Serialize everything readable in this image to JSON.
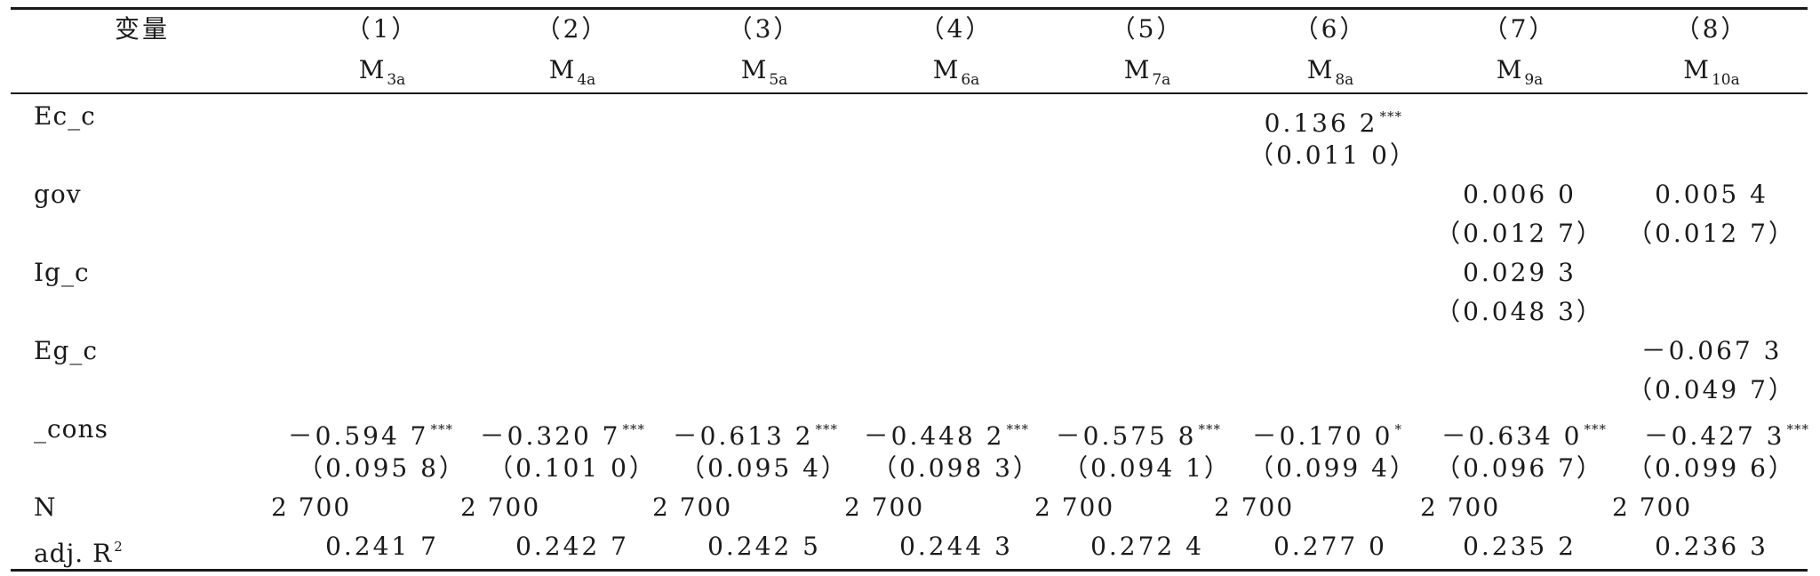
{
  "header": {
    "variable_label": "变量",
    "columns": [
      {
        "num": "（1）",
        "model": "M",
        "model_sub": "3a"
      },
      {
        "num": "（2）",
        "model": "M",
        "model_sub": "4a"
      },
      {
        "num": "（3）",
        "model": "M",
        "model_sub": "5a"
      },
      {
        "num": "（4）",
        "model": "M",
        "model_sub": "6a"
      },
      {
        "num": "（5）",
        "model": "M",
        "model_sub": "7a"
      },
      {
        "num": "（6）",
        "model": "M",
        "model_sub": "8a"
      },
      {
        "num": "（7）",
        "model": "M",
        "model_sub": "9a"
      },
      {
        "num": "（8）",
        "model": "M",
        "model_sub": "10a"
      }
    ]
  },
  "rows": {
    "ec_c": {
      "label": "Ec_c",
      "c6": {
        "coef": "0.136 2",
        "stars": "***",
        "se": "（0.011 0）"
      }
    },
    "gov": {
      "label": "gov",
      "c7": {
        "coef": "0.006 0",
        "se": "（0.012 7）"
      },
      "c8": {
        "coef": "0.005 4",
        "se": "（0.012 7）"
      }
    },
    "ig_c": {
      "label": "Ig_c",
      "c7": {
        "coef": "0.029 3",
        "se": "（0.048 3）"
      }
    },
    "eg_c": {
      "label": "Eg_c",
      "c8": {
        "coef": "－0.067 3",
        "se": "（0.049 7）"
      }
    },
    "cons": {
      "label": "_cons",
      "cols": [
        {
          "coef": "－0.594 7",
          "stars": "***",
          "se": "（0.095 8）"
        },
        {
          "coef": "－0.320 7",
          "stars": "***",
          "se": "（0.101 0）"
        },
        {
          "coef": "－0.613 2",
          "stars": "***",
          "se": "（0.095 4）"
        },
        {
          "coef": "－0.448 2",
          "stars": "***",
          "se": "（0.098 3）"
        },
        {
          "coef": "－0.575 8",
          "stars": "***",
          "se": "（0.094 1）"
        },
        {
          "coef": "－0.170 0",
          "stars": "*",
          "se": "（0.099 4）"
        },
        {
          "coef": "－0.634 0",
          "stars": "***",
          "se": "（0.096 7）"
        },
        {
          "coef": "－0.427 3",
          "stars": "***",
          "se": "（0.099 6）"
        }
      ]
    },
    "n": {
      "label": "N",
      "values": [
        "2 700",
        "2 700",
        "2 700",
        "2 700",
        "2 700",
        "2 700",
        "2 700",
        "2 700"
      ]
    },
    "adj_r2": {
      "label": "adj. R",
      "label_sup": "2",
      "values": [
        "0.241 7",
        "0.242 7",
        "0.242 5",
        "0.244 3",
        "0.272 4",
        "0.277 0",
        "0.235 2",
        "0.236 3"
      ]
    }
  }
}
